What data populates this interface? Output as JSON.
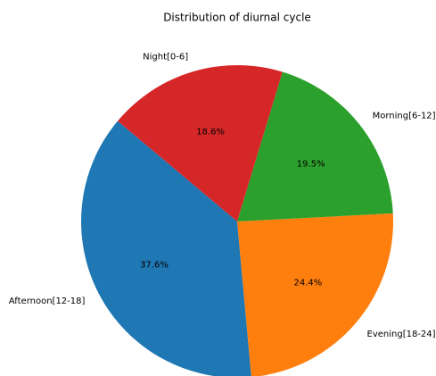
{
  "chart_data": {
    "type": "pie",
    "title": "Distribution of diurnal cycle",
    "categories": [
      "Afternoon[12-18]",
      "Evening[18-24]",
      "Morning[6-12]",
      "Night[0-6]"
    ],
    "values": [
      37.6,
      24.4,
      19.5,
      18.6
    ],
    "value_labels": [
      "37.6%",
      "24.4%",
      "19.5%",
      "18.6%"
    ],
    "colors": [
      "#1f77b4",
      "#ff7f0e",
      "#2ca02c",
      "#d62728"
    ]
  }
}
